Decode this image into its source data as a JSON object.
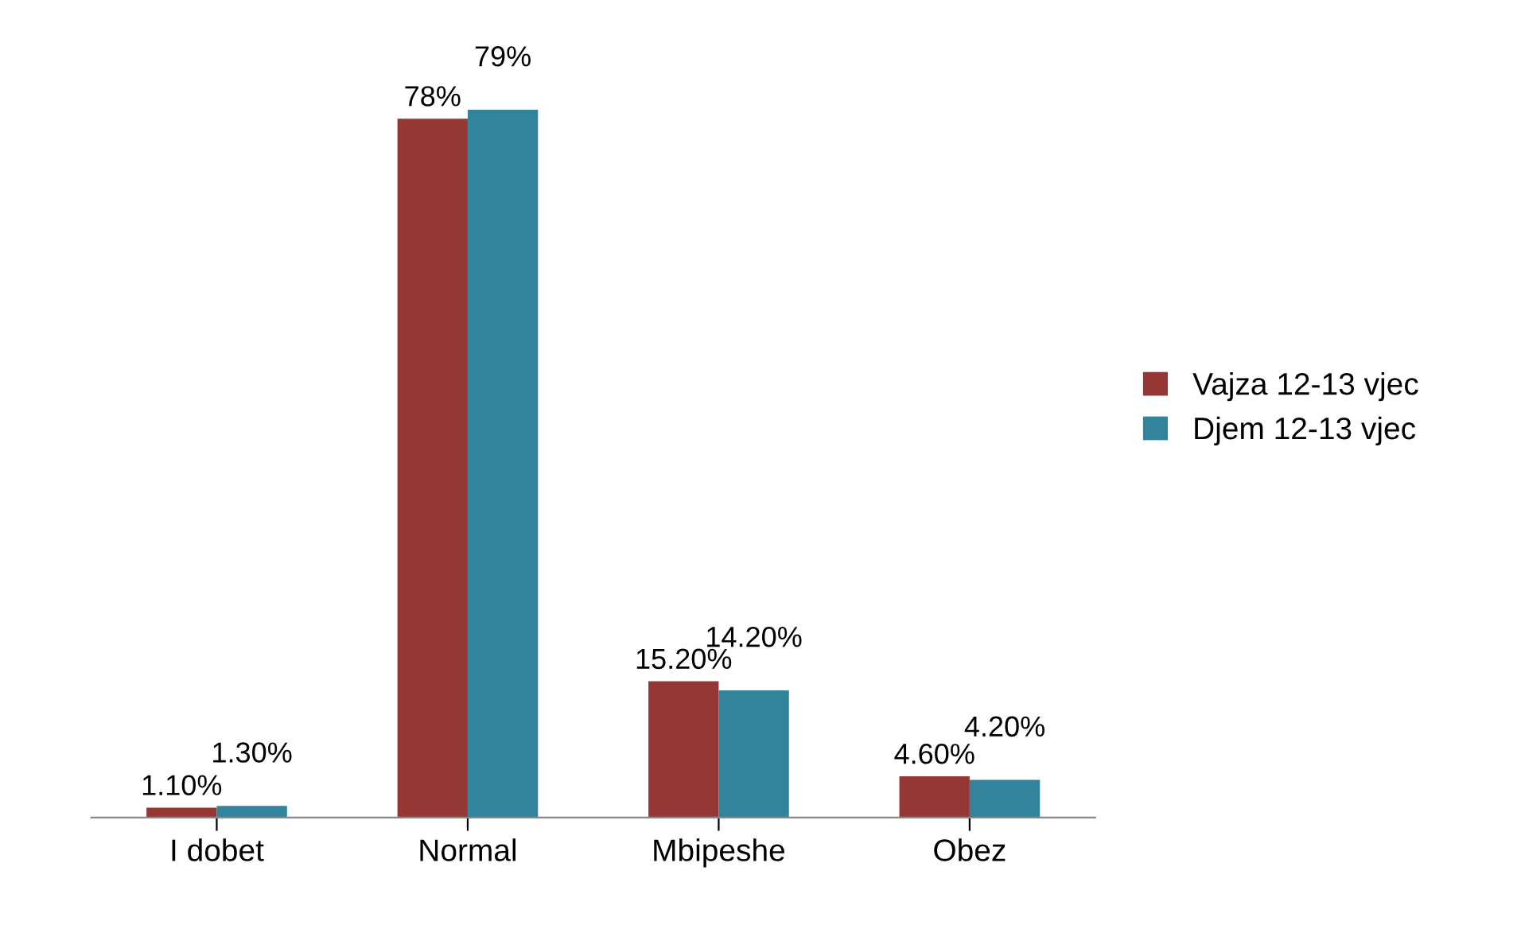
{
  "chart_data": {
    "type": "bar",
    "categories": [
      "I dobet",
      "Normal",
      "Mbipeshe",
      "Obez"
    ],
    "series": [
      {
        "name": "Vajza 12-13 vjec",
        "color": "#953735",
        "values": [
          1.1,
          78,
          15.2,
          4.6
        ],
        "value_labels": [
          "1.10%",
          "78%",
          "15.20%",
          "4.60%"
        ]
      },
      {
        "name": "Djem 12-13 vjec",
        "color": "#31849b",
        "values": [
          1.3,
          79,
          14.2,
          4.2
        ],
        "value_labels": [
          "1.30%",
          "79%",
          "14.20%",
          "4.20%"
        ]
      }
    ],
    "legend": "right",
    "grid": false
  }
}
